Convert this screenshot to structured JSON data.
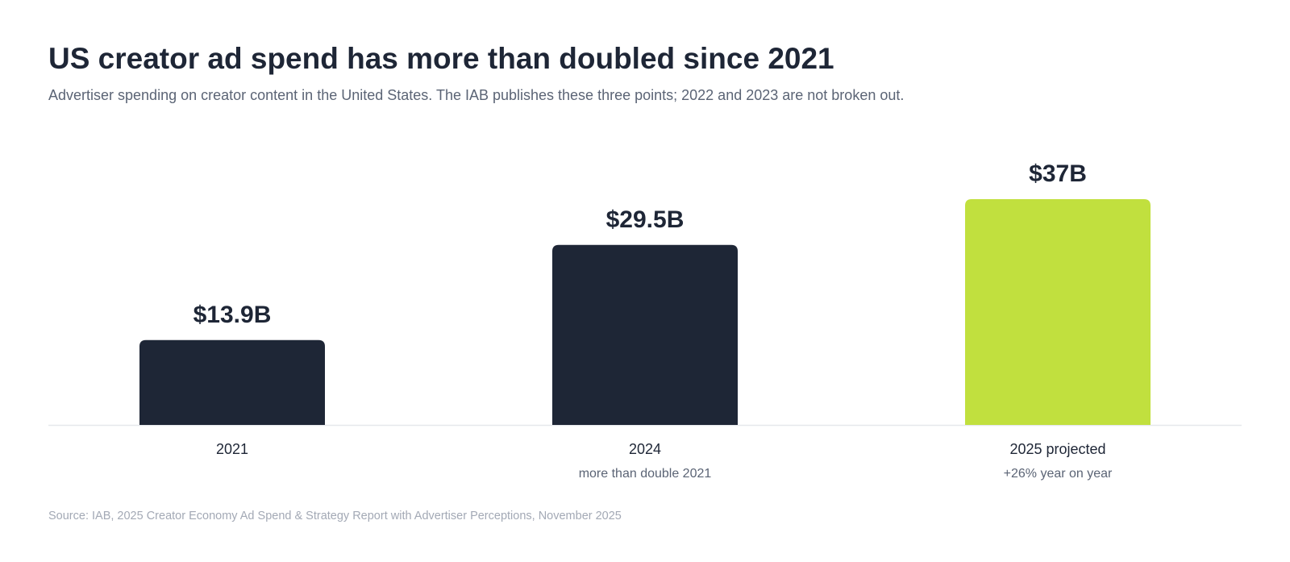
{
  "title": "US creator ad spend has more than doubled since 2021",
  "subtitle": "Advertiser spending on creator content in the United States. The IAB publishes these three points; 2022 and 2023 are not broken out.",
  "source": "Source: IAB, 2025 Creator Economy Ad Spend & Strategy Report with Advertiser Perceptions, November 2025",
  "colors": {
    "actual": "#1e2636",
    "projected": "#c1e03e",
    "baseline": "#e6e8ec"
  },
  "chart_data": {
    "type": "bar",
    "categories": [
      "2021",
      "2024",
      "2025 projected"
    ],
    "values": [
      13.9,
      29.5,
      37
    ],
    "value_labels": [
      "$13.9B",
      "$29.5B",
      "$37B"
    ],
    "notes": [
      "",
      "more than double 2021",
      "+26% year on year"
    ],
    "projected": [
      false,
      false,
      true
    ],
    "ylim": [
      0,
      37
    ],
    "grid": false,
    "legend": "none"
  }
}
